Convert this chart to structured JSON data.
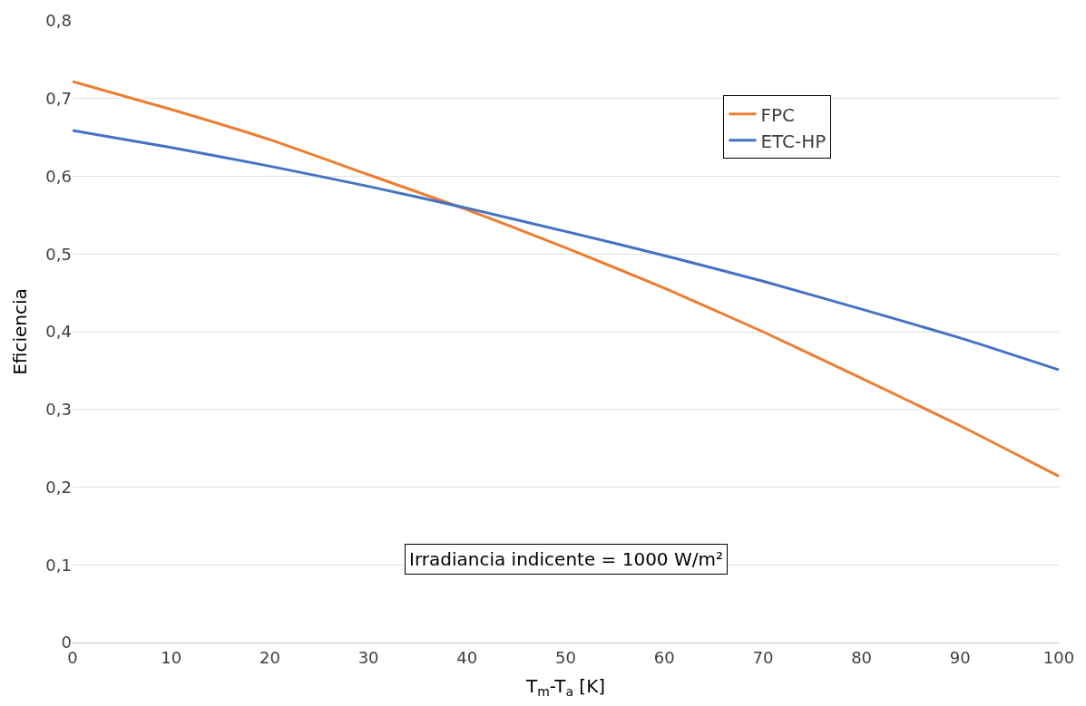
{
  "chart_data": {
    "type": "line",
    "xlabel": "T$_{m}$-T$_{a}$ [K]",
    "ylabel": "Eficiencia",
    "x": [
      0,
      10,
      20,
      30,
      40,
      50,
      60,
      70,
      80,
      90,
      100
    ],
    "series": [
      {
        "name": "FPC",
        "color": "#ed7d31",
        "values": [
          0.722,
          0.686,
          0.647,
          0.602,
          0.557,
          0.508,
          0.456,
          0.4,
          0.34,
          0.279,
          0.214
        ]
      },
      {
        "name": "ETC-HP",
        "color": "#4472c4",
        "values": [
          0.659,
          0.637,
          0.613,
          0.587,
          0.559,
          0.529,
          0.498,
          0.465,
          0.429,
          0.392,
          0.351
        ]
      }
    ],
    "xlim": [
      0,
      100
    ],
    "xticks": [
      0,
      10,
      20,
      30,
      40,
      50,
      60,
      70,
      80,
      90,
      100
    ],
    "ylim": [
      0,
      0.8
    ],
    "yticks": [
      0,
      {
        "value": 0.1,
        "label": "0,1"
      },
      {
        "value": 0.2,
        "label": "0,2"
      },
      {
        "value": 0.3,
        "label": "0,3"
      },
      {
        "value": 0.4,
        "label": "0,4"
      },
      {
        "value": 0.5,
        "label": "0,5"
      },
      {
        "value": 0.6,
        "label": "0,6"
      },
      {
        "value": 0.7,
        "label": "0,7"
      },
      {
        "value": 0.8,
        "label": "0,8"
      }
    ],
    "annotations": [
      "Irradiancia indicente = 1000 W/m²"
    ],
    "grid": "y",
    "legend": "top right",
    "marker": "none",
    "line_style": "solid"
  }
}
